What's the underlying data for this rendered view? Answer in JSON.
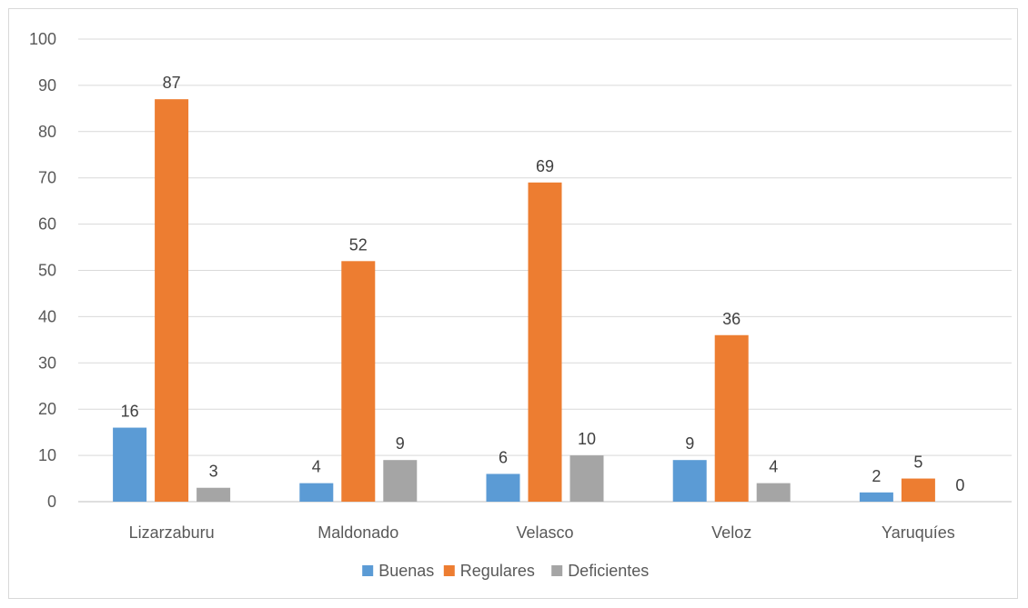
{
  "chart_data": {
    "type": "bar",
    "title": "",
    "xlabel": "",
    "ylabel": "",
    "categories": [
      "Lizarzaburu",
      "Maldonado",
      "Velasco",
      "Veloz",
      "Yaruquíes"
    ],
    "series": [
      {
        "name": "Buenas",
        "color": "#5b9bd5",
        "values": [
          16,
          4,
          6,
          9,
          2
        ]
      },
      {
        "name": "Regulares",
        "color": "#ed7d31",
        "values": [
          87,
          52,
          69,
          36,
          5
        ]
      },
      {
        "name": "Deficientes",
        "color": "#a5a5a5",
        "values": [
          3,
          9,
          10,
          4,
          0
        ]
      }
    ],
    "ylim": [
      0,
      100
    ],
    "yticks": [
      "0",
      "10",
      "20",
      "30",
      "40",
      "50",
      "60",
      "70",
      "80",
      "90",
      "100"
    ],
    "grid": true,
    "legend_position": "bottom"
  }
}
